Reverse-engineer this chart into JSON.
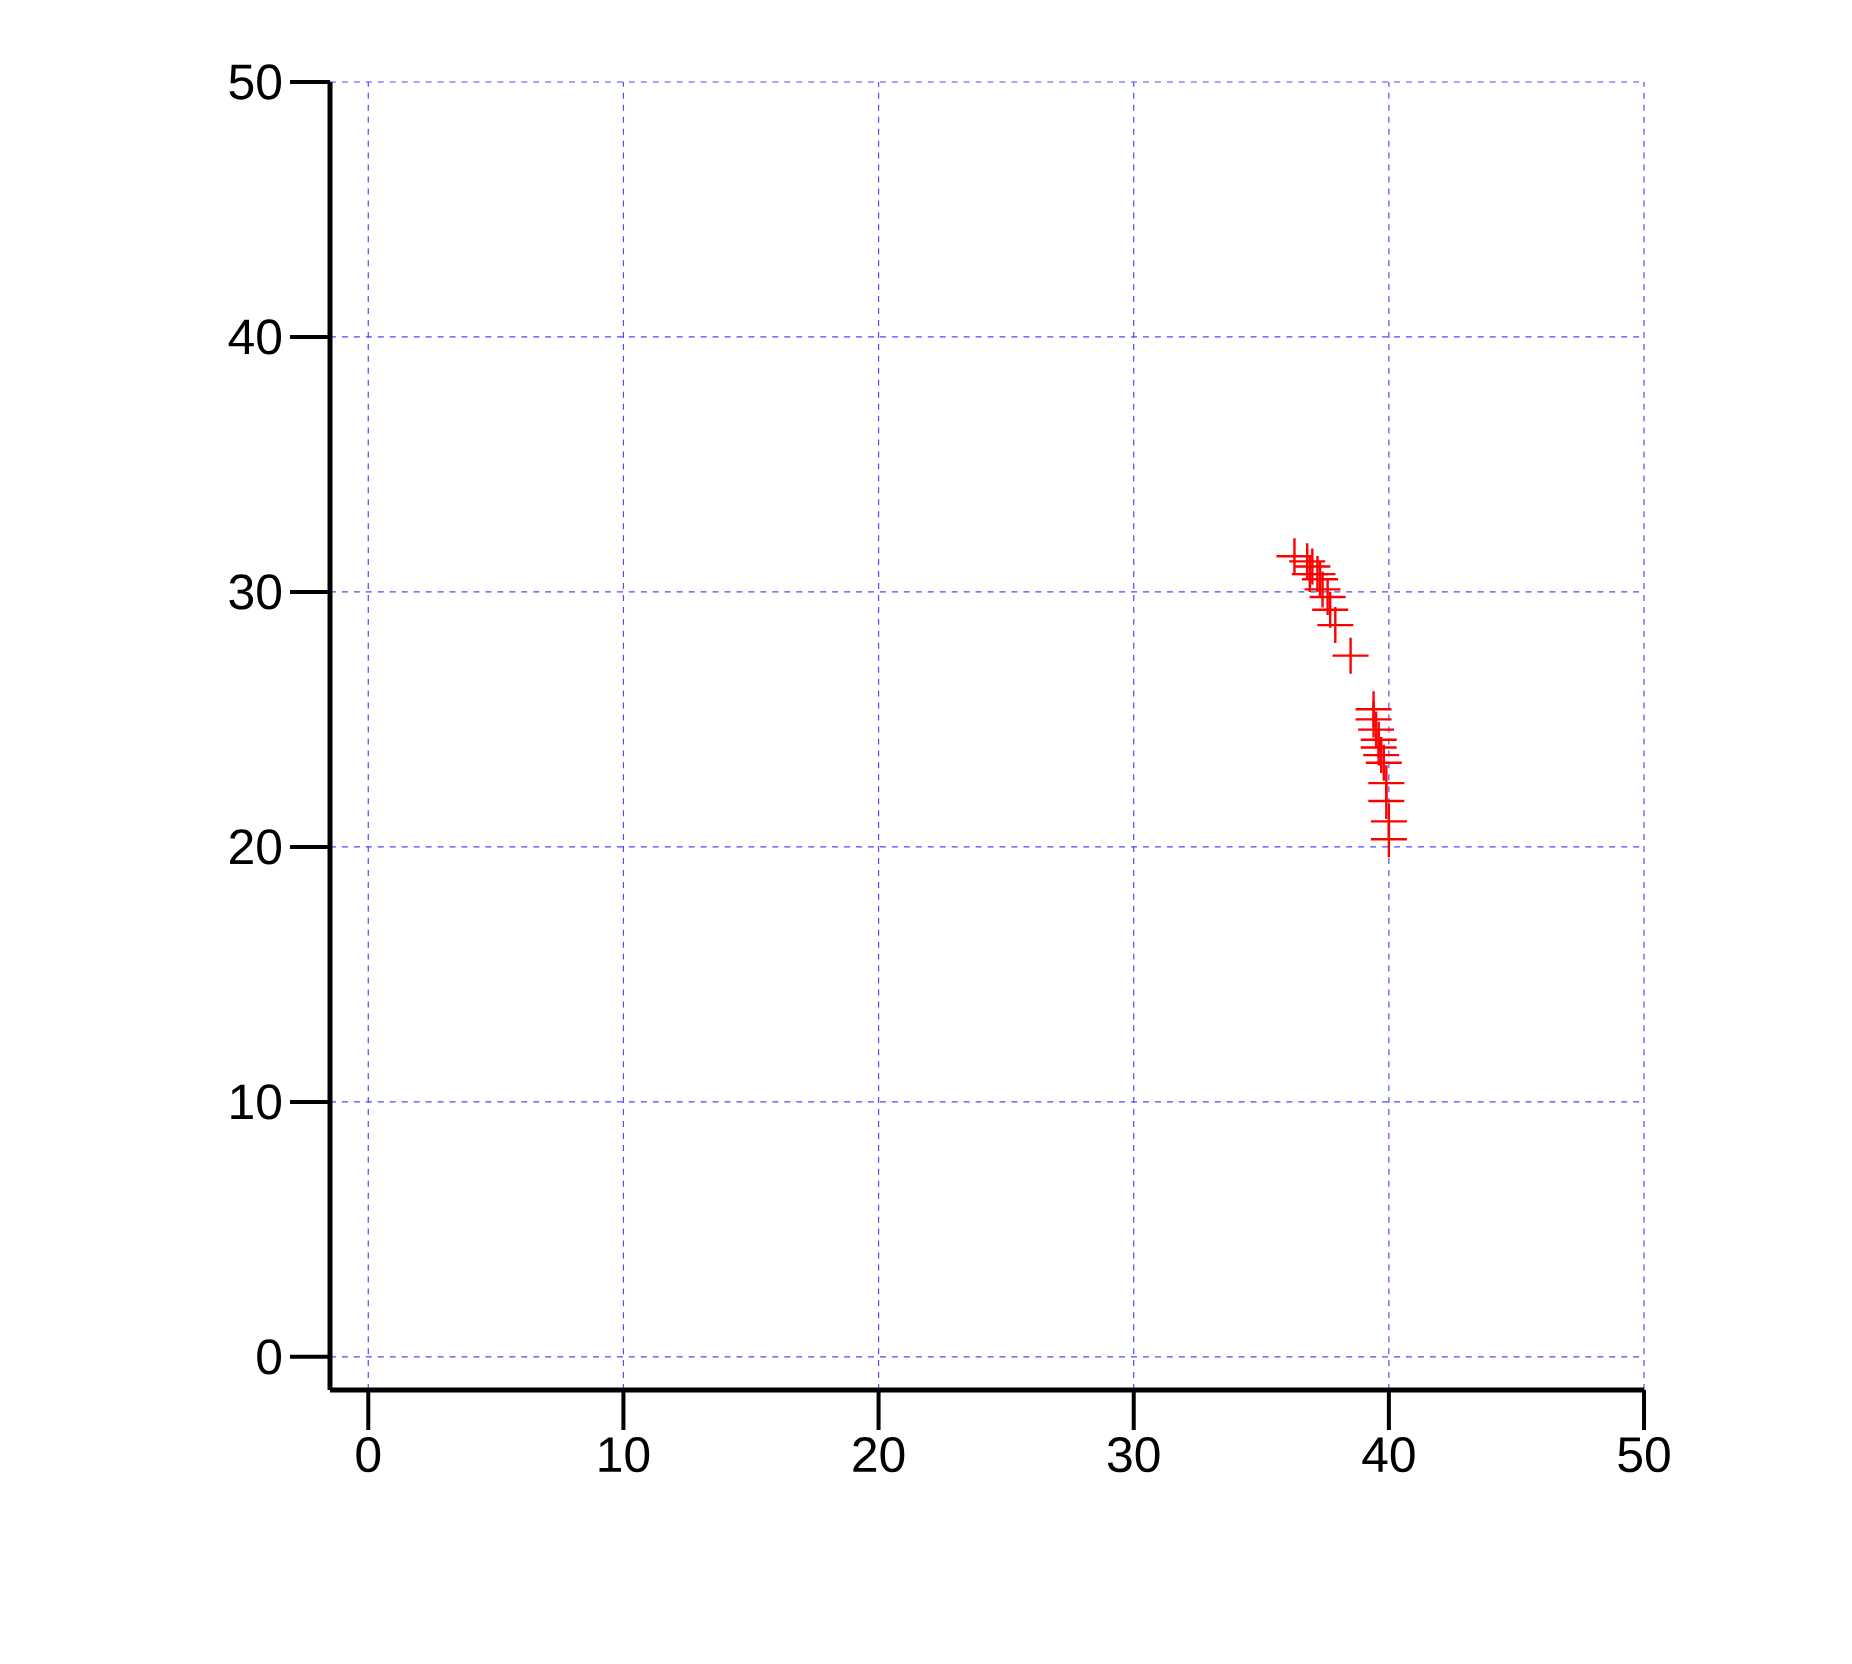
{
  "chart_data": {
    "type": "scatter",
    "marker": "cross",
    "grid": true,
    "xlim": [
      -1.5,
      50
    ],
    "ylim": [
      -1.3,
      50
    ],
    "xticks": [
      0,
      10,
      20,
      30,
      40,
      50
    ],
    "yticks": [
      0,
      10,
      20,
      30,
      40,
      50
    ],
    "series": [
      {
        "color": "#ff0000",
        "x": [
          36.3,
          36.8,
          37.0,
          37.2,
          36.9,
          37.3,
          37.4,
          37.6,
          37.7,
          37.9,
          38.5,
          39.4,
          39.4,
          39.5,
          39.6,
          39.6,
          39.7,
          39.8,
          39.9,
          39.9,
          40.0,
          40.0
        ],
        "values": [
          31.4,
          31.2,
          31.0,
          30.7,
          30.7,
          30.5,
          30.1,
          29.8,
          29.3,
          28.7,
          27.5,
          25.4,
          25.0,
          24.6,
          24.2,
          23.9,
          23.6,
          23.3,
          22.5,
          21.8,
          21.0,
          20.3
        ]
      }
    ]
  }
}
